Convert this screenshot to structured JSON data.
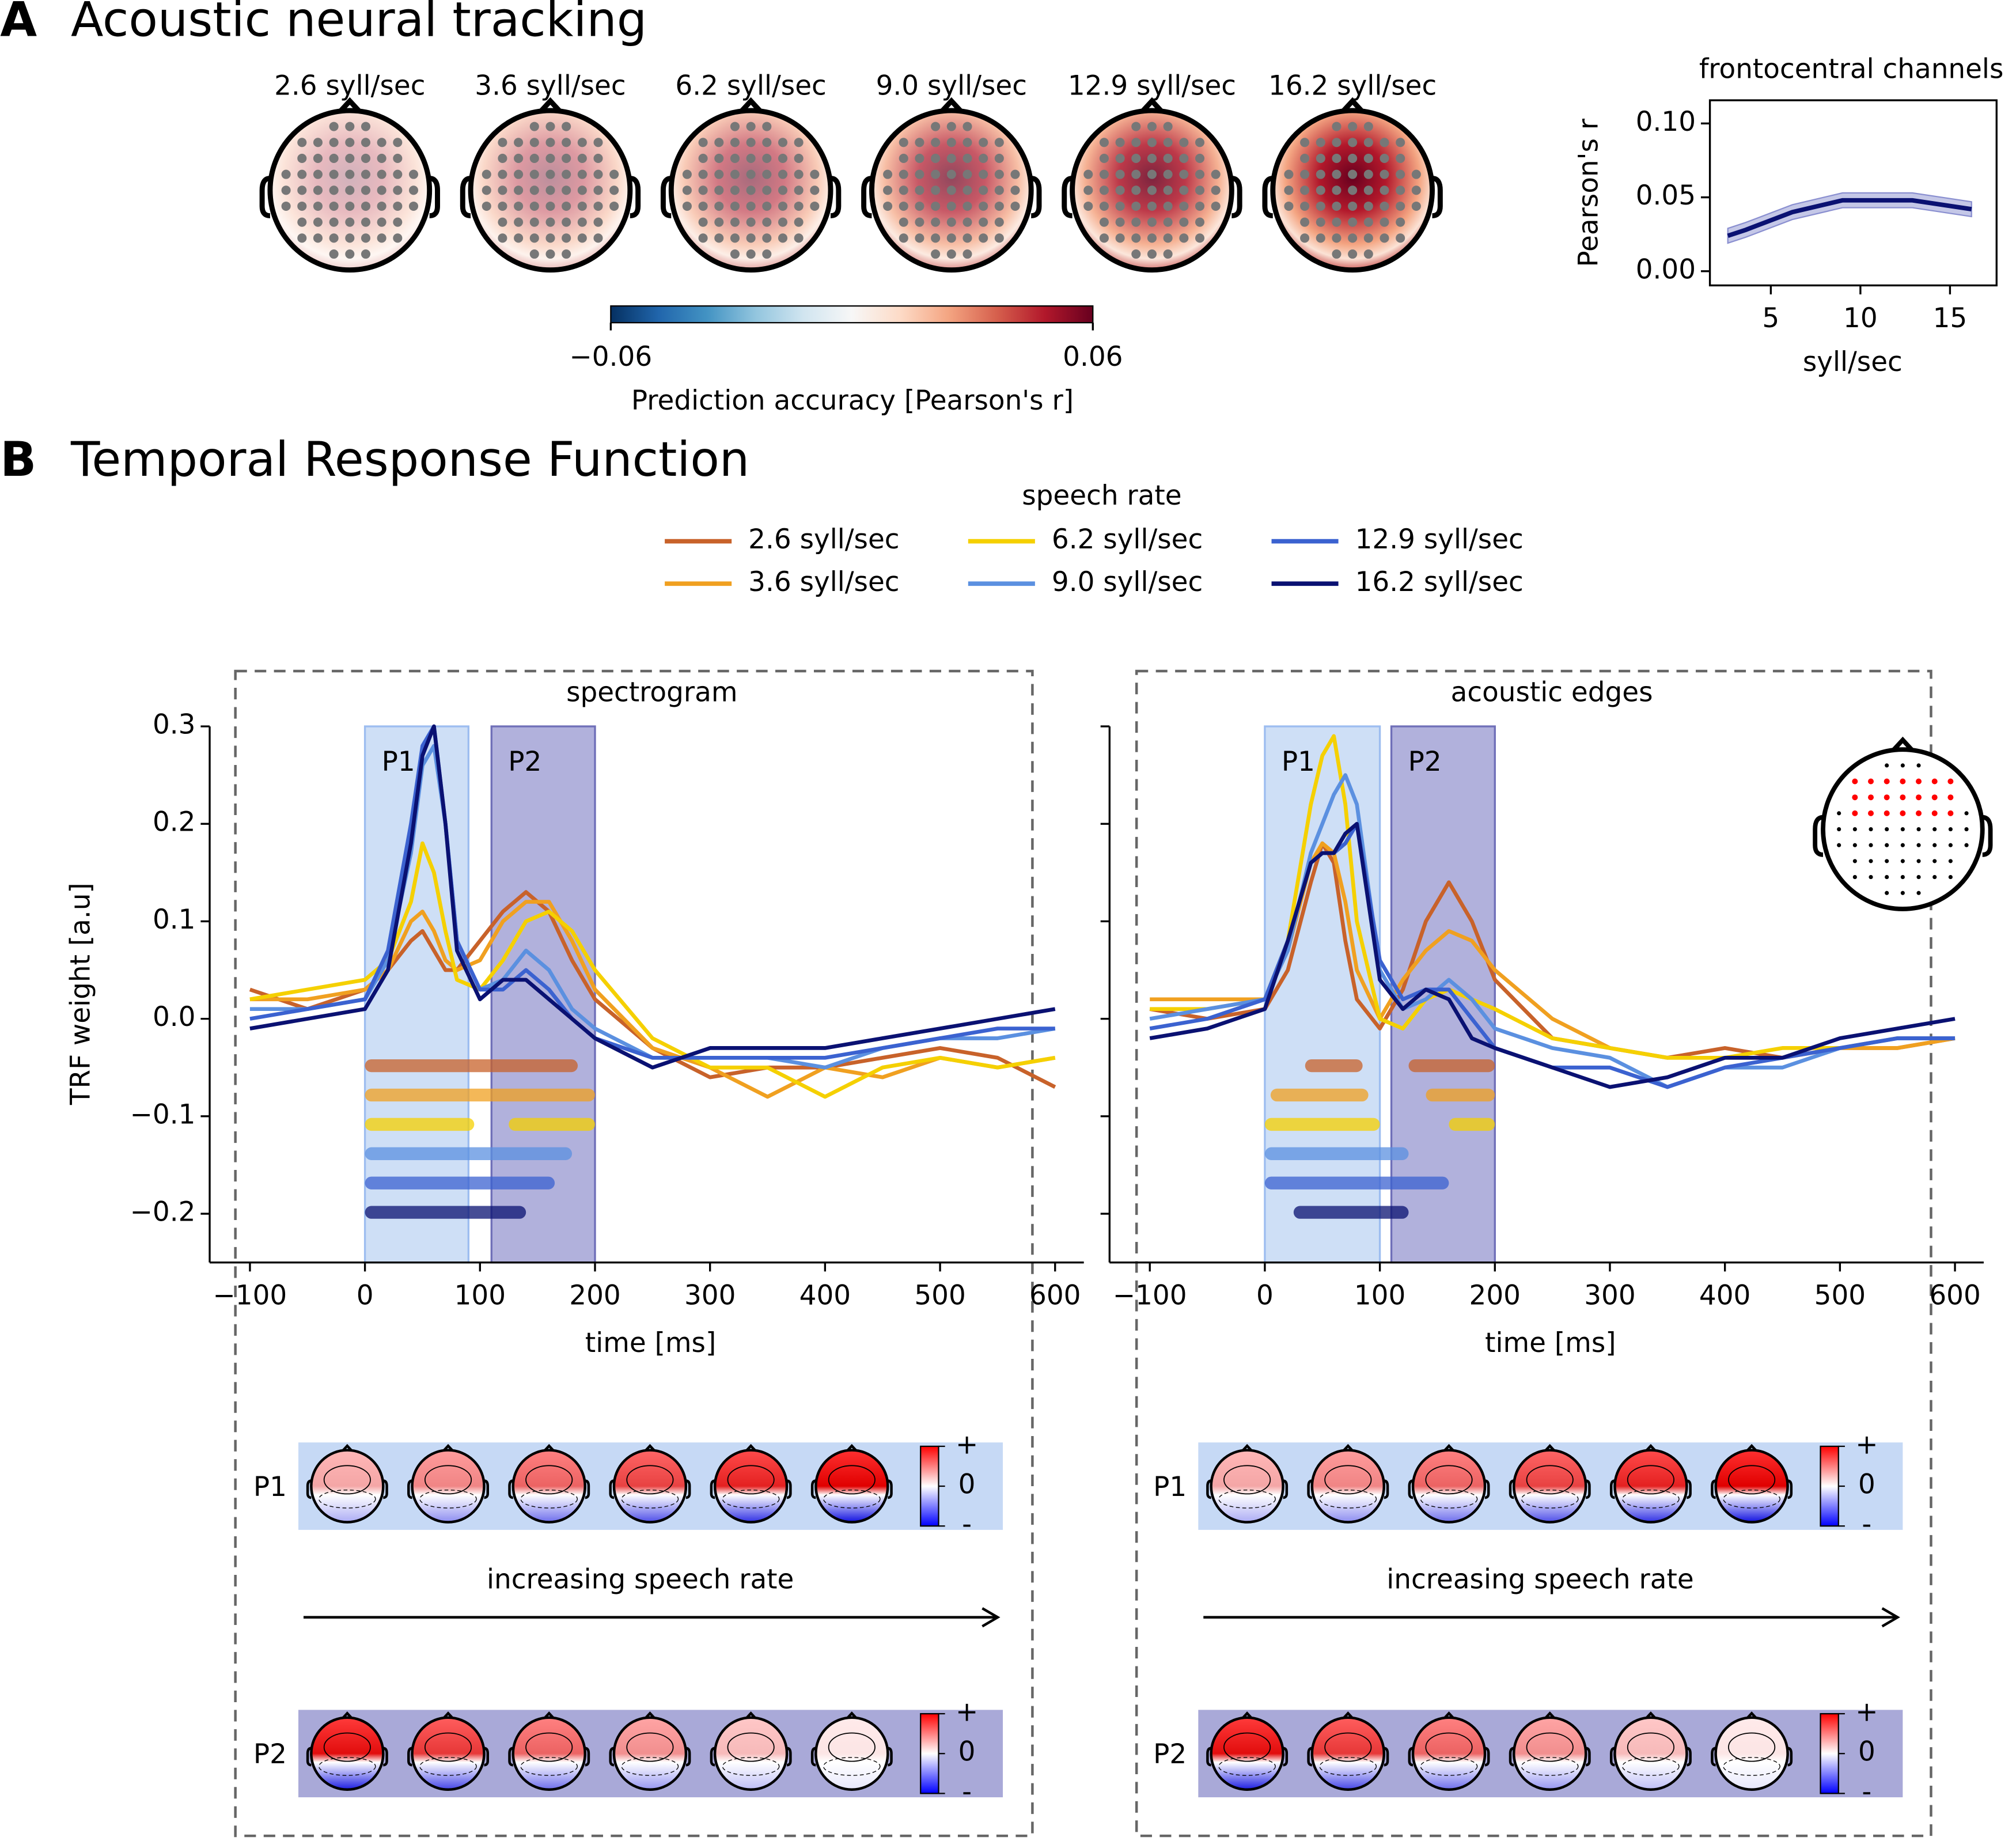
{
  "panel_a": {
    "label": "A",
    "title": "Acoustic neural tracking",
    "topomap_titles": [
      "2.6 syll/sec",
      "3.6 syll/sec",
      "6.2 syll/sec",
      "9.0 syll/sec",
      "12.9 syll/sec",
      "16.2 syll/sec"
    ],
    "colorbar": {
      "lim": [
        -0.06,
        0.06
      ],
      "ticks": [
        {
          "value": -0.06,
          "label": "−0.06"
        },
        0.06
      ],
      "label": "Prediction accuracy [Pearson's r]"
    }
  },
  "panel_b": {
    "label": "B",
    "title": "Temporal Response Function",
    "legend_title": "speech rate",
    "topo_row_labels": [
      "P1",
      "P2"
    ],
    "topo_colorbar_labels": [
      "+",
      "0",
      "-"
    ],
    "arrow_text": "increasing speech rate"
  },
  "chart_data": [
    {
      "type": "line",
      "title": "frontocentral channels",
      "x_label": "syll/sec",
      "y_label": "Pearson's r",
      "x": [
        2.6,
        3.6,
        6.2,
        9.0,
        12.9,
        16.2
      ],
      "series": [
        {
          "color": "#0a1172",
          "band_color": "#8a8fd0",
          "values": [
            0.024,
            0.028,
            0.04,
            0.048,
            0.048,
            0.042
          ],
          "ci_lower": [
            0.019,
            0.023,
            0.035,
            0.043,
            0.043,
            0.037
          ],
          "ci_upper": [
            0.029,
            0.033,
            0.045,
            0.053,
            0.053,
            0.047
          ]
        }
      ],
      "xlim": [
        1.6,
        17.6
      ],
      "ylim": [
        -0.0096,
        0.1157
      ],
      "xticks": [
        5,
        10,
        15
      ],
      "yticks": [
        {
          "value": 0,
          "label": "0.00"
        },
        0.05,
        {
          "value": 0.1,
          "label": "0.10"
        }
      ]
    },
    {
      "type": "trf",
      "title": "spectrogram",
      "x_label": "time [ms]",
      "y_label": "TRF weight [a.u]",
      "x": [
        -100,
        -50,
        0,
        20,
        40,
        50,
        60,
        70,
        80,
        100,
        120,
        140,
        160,
        180,
        200,
        250,
        300,
        350,
        400,
        450,
        500,
        550,
        600
      ],
      "windows": [
        {
          "name": "P1",
          "range": [
            0,
            90
          ],
          "color": "#c6d9f5"
        },
        {
          "name": "P2",
          "range": [
            110,
            200
          ],
          "color": "#a3a3d6"
        }
      ],
      "series": [
        {
          "name": "2.6 syll/sec",
          "color": "#c8622a",
          "sig": [
            [
              0,
              185
            ]
          ],
          "values": [
            0.03,
            0.01,
            0.03,
            0.05,
            0.08,
            0.09,
            0.07,
            0.05,
            0.05,
            0.08,
            0.11,
            0.13,
            0.11,
            0.06,
            0.02,
            -0.03,
            -0.06,
            -0.05,
            -0.05,
            -0.04,
            -0.03,
            -0.04,
            -0.07
          ]
        },
        {
          "name": "3.6 syll/sec",
          "color": "#f0a020",
          "sig": [
            [
              0,
              200
            ]
          ],
          "values": [
            0.02,
            0.02,
            0.03,
            0.05,
            0.1,
            0.11,
            0.09,
            0.06,
            0.05,
            0.06,
            0.1,
            0.12,
            0.12,
            0.08,
            0.03,
            -0.03,
            -0.05,
            -0.08,
            -0.05,
            -0.06,
            -0.04,
            -0.05,
            -0.04
          ]
        },
        {
          "name": "6.2 syll/sec",
          "color": "#f5d000",
          "sig": [
            [
              0,
              95
            ],
            [
              125,
              200
            ]
          ],
          "values": [
            0.02,
            0.03,
            0.04,
            0.06,
            0.12,
            0.18,
            0.15,
            0.09,
            0.04,
            0.03,
            0.06,
            0.1,
            0.11,
            0.09,
            0.05,
            -0.02,
            -0.05,
            -0.05,
            -0.08,
            -0.05,
            -0.04,
            -0.05,
            -0.04
          ]
        },
        {
          "name": "9.0 syll/sec",
          "color": "#5b90e0",
          "sig": [
            [
              0,
              180
            ]
          ],
          "values": [
            0.01,
            0.01,
            0.02,
            0.06,
            0.17,
            0.26,
            0.28,
            0.2,
            0.08,
            0.03,
            0.04,
            0.07,
            0.05,
            0.01,
            -0.01,
            -0.04,
            -0.04,
            -0.04,
            -0.05,
            -0.03,
            -0.02,
            -0.02,
            -0.01
          ]
        },
        {
          "name": "12.9 syll/sec",
          "color": "#3b62d0",
          "sig": [
            [
              0,
              165
            ]
          ],
          "values": [
            0.0,
            0.01,
            0.02,
            0.07,
            0.2,
            0.28,
            0.3,
            0.2,
            0.08,
            0.03,
            0.03,
            0.05,
            0.03,
            0.0,
            -0.02,
            -0.04,
            -0.04,
            -0.04,
            -0.04,
            -0.03,
            -0.02,
            -0.01,
            -0.01
          ]
        },
        {
          "name": "16.2 syll/sec",
          "color": "#0a1172",
          "sig": [
            [
              0,
              140
            ]
          ],
          "values": [
            -0.01,
            0.0,
            0.01,
            0.05,
            0.18,
            0.27,
            0.3,
            0.2,
            0.07,
            0.02,
            0.04,
            0.04,
            0.02,
            0.0,
            -0.02,
            -0.05,
            -0.03,
            -0.03,
            -0.03,
            -0.02,
            -0.01,
            0.0,
            0.01
          ]
        }
      ],
      "xlim": [
        -135,
        625
      ],
      "ylim": [
        -0.25,
        0.3
      ],
      "xticks": [
        {
          "value": -100,
          "label": "−100"
        },
        0,
        100,
        200,
        300,
        400,
        500,
        600
      ],
      "yticks": [
        {
          "value": -0.2,
          "label": "−0.2"
        },
        {
          "value": -0.1,
          "label": "−0.1"
        },
        {
          "value": 0,
          "label": "0.0"
        },
        0.1,
        0.2,
        0.3
      ]
    },
    {
      "type": "trf",
      "title": "acoustic edges",
      "x_label": "time [ms]",
      "x": [
        -100,
        -50,
        0,
        20,
        40,
        50,
        60,
        70,
        80,
        100,
        120,
        140,
        160,
        180,
        200,
        250,
        300,
        350,
        400,
        450,
        500,
        550,
        600
      ],
      "windows": [
        {
          "name": "P1",
          "range": [
            0,
            100
          ],
          "color": "#c6d9f5"
        },
        {
          "name": "P2",
          "range": [
            110,
            200
          ],
          "color": "#a3a3d6"
        }
      ],
      "series": [
        {
          "name": "2.6 syll/sec",
          "color": "#c8622a",
          "sig": [
            [
              35,
              85
            ],
            [
              125,
              200
            ]
          ],
          "values": [
            0.01,
            0.0,
            0.01,
            0.05,
            0.14,
            0.18,
            0.16,
            0.08,
            0.02,
            -0.01,
            0.03,
            0.1,
            0.14,
            0.1,
            0.04,
            -0.02,
            -0.03,
            -0.04,
            -0.03,
            -0.04,
            -0.03,
            -0.03,
            -0.02
          ]
        },
        {
          "name": "3.6 syll/sec",
          "color": "#f0a020",
          "sig": [
            [
              5,
              90
            ],
            [
              140,
              200
            ]
          ],
          "values": [
            0.02,
            0.02,
            0.02,
            0.07,
            0.16,
            0.18,
            0.17,
            0.12,
            0.05,
            0.0,
            0.04,
            0.07,
            0.09,
            0.08,
            0.05,
            0.0,
            -0.03,
            -0.04,
            -0.04,
            -0.04,
            -0.03,
            -0.03,
            -0.02
          ]
        },
        {
          "name": "6.2 syll/sec",
          "color": "#f5d000",
          "sig": [
            [
              0,
              100
            ],
            [
              160,
              200
            ]
          ],
          "values": [
            0.01,
            0.01,
            0.02,
            0.08,
            0.22,
            0.27,
            0.29,
            0.22,
            0.1,
            0.0,
            -0.01,
            0.02,
            0.03,
            0.02,
            0.01,
            -0.02,
            -0.03,
            -0.04,
            -0.04,
            -0.03,
            -0.03,
            -0.02,
            -0.02
          ]
        },
        {
          "name": "9.0 syll/sec",
          "color": "#5b90e0",
          "sig": [
            [
              0,
              125
            ]
          ],
          "values": [
            0.0,
            0.01,
            0.02,
            0.07,
            0.17,
            0.2,
            0.23,
            0.25,
            0.22,
            0.05,
            0.01,
            0.02,
            0.04,
            0.02,
            -0.01,
            -0.03,
            -0.04,
            -0.07,
            -0.05,
            -0.05,
            -0.03,
            -0.02,
            -0.02
          ]
        },
        {
          "name": "12.9 syll/sec",
          "color": "#3b62d0",
          "sig": [
            [
              0,
              160
            ]
          ],
          "values": [
            -0.01,
            0.0,
            0.02,
            0.08,
            0.16,
            0.17,
            0.17,
            0.18,
            0.2,
            0.06,
            0.02,
            0.03,
            0.03,
            0.0,
            -0.03,
            -0.05,
            -0.05,
            -0.07,
            -0.05,
            -0.04,
            -0.03,
            -0.02,
            -0.02
          ]
        },
        {
          "name": "16.2 syll/sec",
          "color": "#0a1172",
          "sig": [
            [
              25,
              125
            ]
          ],
          "values": [
            -0.02,
            -0.01,
            0.01,
            0.08,
            0.16,
            0.17,
            0.17,
            0.19,
            0.2,
            0.04,
            0.01,
            0.03,
            0.02,
            -0.02,
            -0.03,
            -0.05,
            -0.07,
            -0.06,
            -0.04,
            -0.04,
            -0.02,
            -0.01,
            0.0
          ]
        }
      ],
      "xlim": [
        -135,
        625
      ],
      "ylim": [
        -0.25,
        0.3
      ],
      "xticks": [
        {
          "value": -100,
          "label": "−100"
        },
        0,
        100,
        200,
        300,
        400,
        500,
        600
      ],
      "yticks": [
        {
          "value": -0.2,
          "label": "−0.2"
        },
        {
          "value": -0.1,
          "label": "−0.1"
        },
        {
          "value": 0,
          "label": "0.0"
        },
        0.1,
        0.2,
        0.3
      ]
    }
  ]
}
